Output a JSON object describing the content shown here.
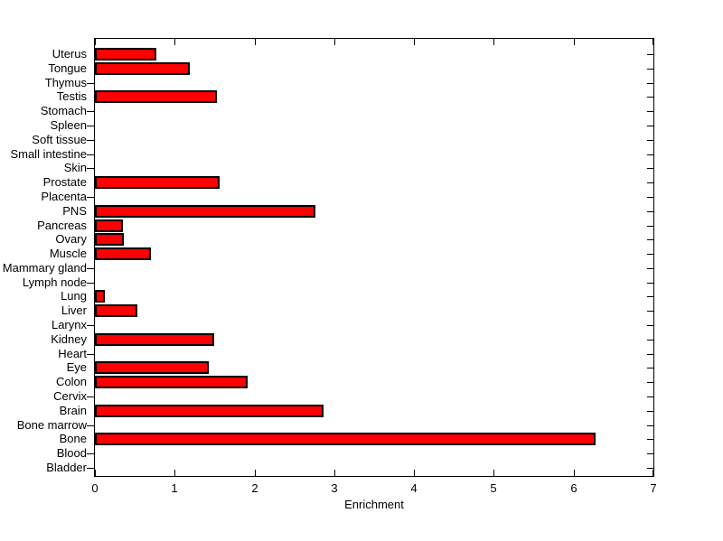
{
  "figure": {
    "background": "#ffffff",
    "text_color": "#000000"
  },
  "chart_data": {
    "type": "bar",
    "orientation": "horizontal",
    "title": "",
    "xlabel": "Enrichment",
    "ylabel": "",
    "xlim": [
      0,
      7
    ],
    "xticks": [
      0,
      1,
      2,
      3,
      4,
      5,
      6,
      7
    ],
    "grid": false,
    "legend": null,
    "bar_color": "#ff0000",
    "bar_edge_color": "#000000",
    "categories": [
      "Uterus",
      "Tongue",
      "Thymus",
      "Testis",
      "Stomach",
      "Spleen",
      "Soft tissue",
      "Small intestine",
      "Skin",
      "Prostate",
      "Placenta",
      "PNS",
      "Pancreas",
      "Ovary",
      "Muscle",
      "Mammary gland",
      "Lymph node",
      "Lung",
      "Liver",
      "Larynx",
      "Kidney",
      "Heart",
      "Eye",
      "Colon",
      "Cervix",
      "Brain",
      "Bone marrow",
      "Bone",
      "Blood",
      "Bladder"
    ],
    "values": [
      0.77,
      1.19,
      0,
      1.53,
      0,
      0,
      0,
      0,
      0,
      1.56,
      0,
      2.76,
      0.35,
      0.36,
      0.7,
      0,
      0,
      0.12,
      0.53,
      0,
      1.49,
      0,
      1.43,
      1.91,
      0,
      2.87,
      0,
      6.28,
      0,
      0
    ]
  }
}
